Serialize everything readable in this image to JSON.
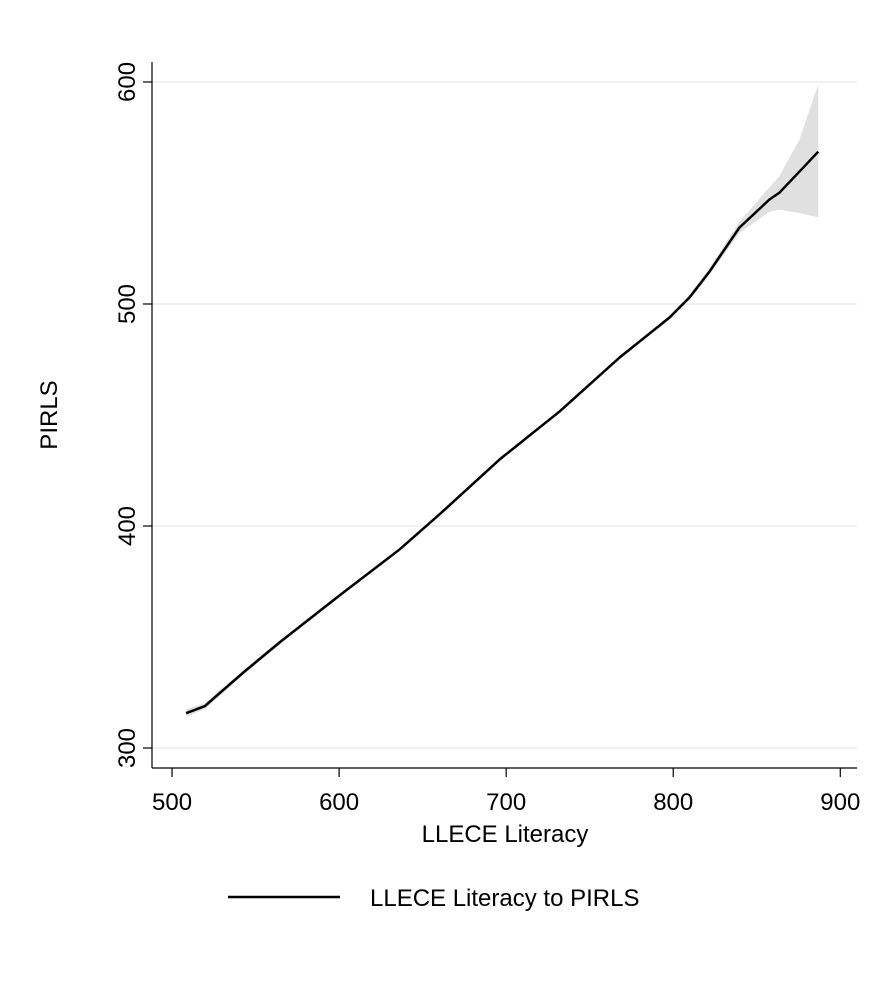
{
  "chart_data": {
    "type": "line",
    "xlabel": "LLECE Literacy",
    "ylabel": "PIRLS",
    "x": [
      508.4,
      519.7,
      525.7,
      543.6,
      564.6,
      600.4,
      636.3,
      660.2,
      696.1,
      732,
      767.9,
      797.8,
      809.7,
      821.7,
      839.6,
      857.5,
      863.5,
      875.5,
      886.8
    ],
    "series": [
      {
        "name": "LLECE Literacy to PIRLS",
        "color": "#000000",
        "values": [
          315.7,
          318.9,
          322.9,
          334.6,
          347.7,
          368.8,
          389.5,
          405.3,
          430,
          451.6,
          475.9,
          493.9,
          502.9,
          514.6,
          534.4,
          547,
          550.1,
          559.6,
          568.6
        ]
      }
    ],
    "band": {
      "color": "#e0e0e0",
      "lower": [
        314,
        317.5,
        321.5,
        333.5,
        346.8,
        368,
        388.8,
        404.6,
        429.3,
        450.9,
        475.1,
        493,
        501.8,
        513,
        532,
        541.5,
        542.5,
        541,
        539
      ],
      "upper": [
        317.4,
        320.3,
        324.3,
        335.7,
        348.6,
        369.6,
        390.2,
        406,
        430.7,
        452.3,
        476.7,
        494.8,
        504,
        516.2,
        537,
        552.5,
        557.5,
        574,
        599
      ]
    },
    "xlim": [
      488,
      910
    ],
    "ylim": [
      291,
      609
    ],
    "xticks": [
      500,
      600,
      700,
      800,
      900
    ],
    "yticks": [
      300,
      400,
      500,
      600
    ],
    "grid": true,
    "legend": "bottom"
  }
}
